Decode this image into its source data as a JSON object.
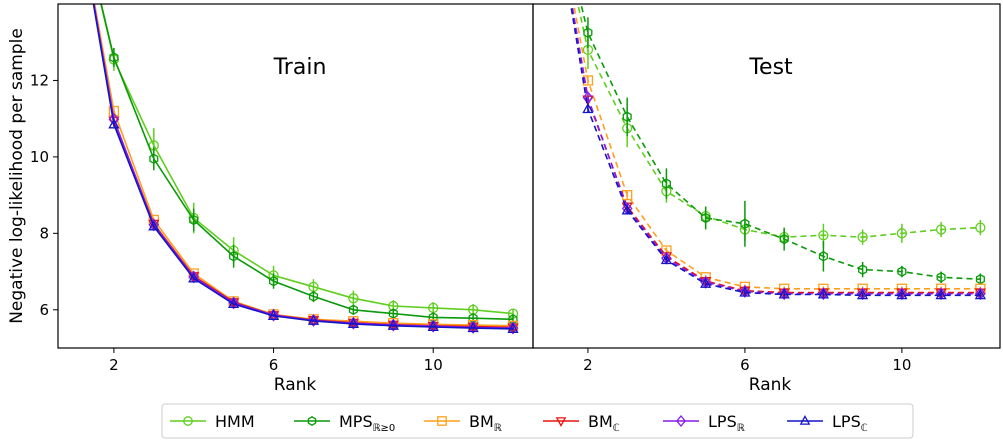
{
  "chart_data": [
    {
      "type": "line",
      "title": "Train",
      "xlabel": "Rank",
      "ylabel": "Negative log-likelihood per sample",
      "xlim": [
        0.6,
        12.5
      ],
      "ylim": [
        5.0,
        14.0
      ],
      "xticks": [
        2,
        6,
        10
      ],
      "yticks": [
        6,
        8,
        10,
        12
      ],
      "line_style": "solid",
      "series": [
        {
          "key": "hmm",
          "x": [
            1,
            2,
            3,
            4,
            5,
            6,
            7,
            8,
            9,
            10,
            11,
            12
          ],
          "y": [
            17.0,
            12.55,
            10.3,
            8.4,
            7.55,
            6.9,
            6.6,
            6.3,
            6.1,
            6.05,
            6.0,
            5.9
          ],
          "err": [
            0.0,
            0.3,
            0.45,
            0.4,
            0.35,
            0.25,
            0.2,
            0.2,
            0.15,
            0.15,
            0.15,
            0.12
          ]
        },
        {
          "key": "mps",
          "x": [
            1,
            2,
            3,
            4,
            5,
            6,
            7,
            8,
            9,
            10,
            11,
            12
          ],
          "y": [
            17.0,
            12.6,
            9.95,
            8.35,
            7.4,
            6.75,
            6.35,
            6.0,
            5.9,
            5.8,
            5.78,
            5.75
          ],
          "err": [
            0.0,
            0.25,
            0.3,
            0.3,
            0.3,
            0.2,
            0.15,
            0.12,
            0.1,
            0.1,
            0.1,
            0.1
          ]
        },
        {
          "key": "bmr",
          "x": [
            1,
            2,
            3,
            4,
            5,
            6,
            7,
            8,
            9,
            10,
            11,
            12
          ],
          "y": [
            17.0,
            11.2,
            8.35,
            6.95,
            6.22,
            5.88,
            5.75,
            5.7,
            5.65,
            5.62,
            5.6,
            5.58
          ],
          "err": [
            0.0,
            0.08,
            0.06,
            0.05,
            0.04,
            0.04,
            0.04,
            0.04,
            0.04,
            0.04,
            0.04,
            0.04
          ]
        },
        {
          "key": "bmc",
          "x": [
            1,
            2,
            3,
            4,
            5,
            6,
            7,
            8,
            9,
            10,
            11,
            12
          ],
          "y": [
            17.0,
            10.95,
            8.25,
            6.88,
            6.2,
            5.86,
            5.73,
            5.66,
            5.61,
            5.58,
            5.56,
            5.54
          ],
          "err": [
            0.0,
            0.06,
            0.05,
            0.04,
            0.04,
            0.04,
            0.04,
            0.04,
            0.04,
            0.04,
            0.04,
            0.04
          ]
        },
        {
          "key": "lpsr",
          "x": [
            1,
            2,
            3,
            4,
            5,
            6,
            7,
            8,
            9,
            10,
            11,
            12
          ],
          "y": [
            17.0,
            10.98,
            8.22,
            6.86,
            6.18,
            5.86,
            5.72,
            5.65,
            5.6,
            5.57,
            5.54,
            5.52
          ],
          "err": [
            0.0,
            0.06,
            0.05,
            0.04,
            0.04,
            0.04,
            0.04,
            0.04,
            0.04,
            0.04,
            0.04,
            0.04
          ]
        },
        {
          "key": "lpsc",
          "x": [
            1,
            2,
            3,
            4,
            5,
            6,
            7,
            8,
            9,
            10,
            11,
            12
          ],
          "y": [
            17.0,
            10.85,
            8.18,
            6.82,
            6.15,
            5.84,
            5.71,
            5.63,
            5.58,
            5.55,
            5.52,
            5.5
          ],
          "err": [
            0.0,
            0.06,
            0.05,
            0.04,
            0.04,
            0.04,
            0.04,
            0.04,
            0.04,
            0.04,
            0.04,
            0.04
          ]
        }
      ]
    },
    {
      "type": "line",
      "title": "Test",
      "xlabel": "Rank",
      "ylabel": "",
      "xlim": [
        0.6,
        12.5
      ],
      "ylim": [
        5.0,
        14.0
      ],
      "xticks": [
        2,
        6,
        10
      ],
      "line_style": "dashed",
      "series": [
        {
          "key": "hmm",
          "x": [
            1,
            2,
            3,
            4,
            5,
            6,
            7,
            8,
            9,
            10,
            11,
            12
          ],
          "y": [
            17.5,
            12.8,
            10.75,
            9.1,
            8.45,
            8.1,
            7.9,
            7.95,
            7.9,
            8.0,
            8.1,
            8.15
          ],
          "err": [
            0.0,
            0.5,
            0.5,
            0.3,
            0.25,
            0.3,
            0.2,
            0.3,
            0.2,
            0.25,
            0.2,
            0.2
          ]
        },
        {
          "key": "mps",
          "x": [
            1,
            2,
            3,
            4,
            5,
            6,
            7,
            8,
            9,
            10,
            11,
            12
          ],
          "y": [
            17.5,
            13.25,
            11.05,
            9.3,
            8.4,
            8.25,
            7.85,
            7.4,
            7.05,
            7.0,
            6.85,
            6.8
          ],
          "err": [
            0.0,
            0.4,
            0.5,
            0.4,
            0.3,
            0.6,
            0.3,
            0.4,
            0.2,
            0.15,
            0.15,
            0.15
          ]
        },
        {
          "key": "bmr",
          "x": [
            1,
            2,
            3,
            4,
            5,
            6,
            7,
            8,
            9,
            10,
            11,
            12
          ],
          "y": [
            17.5,
            12.0,
            9.0,
            7.55,
            6.85,
            6.6,
            6.55,
            6.55,
            6.55,
            6.55,
            6.55,
            6.55
          ],
          "err": [
            0.0,
            0.1,
            0.1,
            0.08,
            0.06,
            0.06,
            0.06,
            0.06,
            0.06,
            0.06,
            0.06,
            0.06
          ]
        },
        {
          "key": "bmc",
          "x": [
            1,
            2,
            3,
            4,
            5,
            6,
            7,
            8,
            9,
            10,
            11,
            12
          ],
          "y": [
            17.5,
            11.5,
            8.7,
            7.4,
            6.75,
            6.5,
            6.45,
            6.45,
            6.45,
            6.45,
            6.45,
            6.45
          ],
          "err": [
            0.0,
            0.1,
            0.08,
            0.08,
            0.06,
            0.06,
            0.06,
            0.06,
            0.06,
            0.06,
            0.06,
            0.06
          ]
        },
        {
          "key": "lpsr",
          "x": [
            1,
            2,
            3,
            4,
            5,
            6,
            7,
            8,
            9,
            10,
            11,
            12
          ],
          "y": [
            17.5,
            11.55,
            8.65,
            7.35,
            6.72,
            6.48,
            6.42,
            6.42,
            6.42,
            6.42,
            6.42,
            6.42
          ],
          "err": [
            0.0,
            0.1,
            0.08,
            0.08,
            0.06,
            0.06,
            0.06,
            0.06,
            0.06,
            0.06,
            0.06,
            0.06
          ]
        },
        {
          "key": "lpsc",
          "x": [
            1,
            2,
            3,
            4,
            5,
            6,
            7,
            8,
            9,
            10,
            11,
            12
          ],
          "y": [
            17.5,
            11.25,
            8.6,
            7.3,
            6.68,
            6.45,
            6.4,
            6.4,
            6.38,
            6.38,
            6.38,
            6.38
          ],
          "err": [
            0.0,
            0.1,
            0.08,
            0.08,
            0.06,
            0.06,
            0.06,
            0.06,
            0.06,
            0.06,
            0.06,
            0.06
          ]
        }
      ]
    }
  ],
  "legend": {
    "placement": "bottom",
    "entries": [
      {
        "key": "hmm",
        "label": "HMM",
        "sub": "",
        "color": "#5fce1e",
        "marker": "circle"
      },
      {
        "key": "mps",
        "label": "MPS",
        "sub": "ℝ≥0",
        "color": "#0a9a0a",
        "marker": "hexagon"
      },
      {
        "key": "bmr",
        "label": "BM",
        "sub": "ℝ",
        "color": "#ff9f1c",
        "marker": "square"
      },
      {
        "key": "bmc",
        "label": "BM",
        "sub": "ℂ",
        "color": "#e8120c",
        "marker": "triangle-down"
      },
      {
        "key": "lpsr",
        "label": "LPS",
        "sub": "ℝ",
        "color": "#8a1ce6",
        "marker": "diamond"
      },
      {
        "key": "lpsc",
        "label": "LPS",
        "sub": "ℂ",
        "color": "#1414c8",
        "marker": "triangle-up"
      }
    ]
  }
}
